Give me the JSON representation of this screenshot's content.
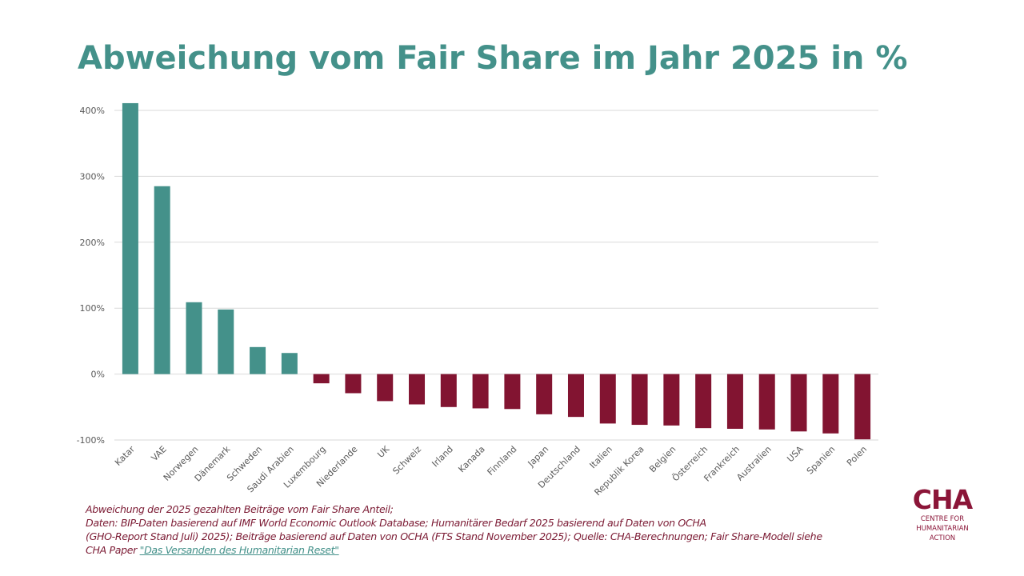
{
  "title": "Abweichung vom Fair Share im Jahr 2025 in %",
  "colors": {
    "positive": "#44918a",
    "negative": "#821431",
    "grid": "#d9d9d9",
    "title": "#44918a",
    "footnote": "#7b1a33",
    "link": "#44918a",
    "logo": "#8b1538"
  },
  "chart_data": {
    "type": "bar",
    "title": "Abweichung vom Fair Share im Jahr 2025 in %",
    "xlabel": "",
    "ylabel": "",
    "ylim": [
      -100,
      400
    ],
    "yticks": [
      400,
      300,
      200,
      100,
      0,
      -100
    ],
    "ytick_labels": [
      "400%",
      "300%",
      "200%",
      "100%",
      "0%",
      "-100%"
    ],
    "grid": true,
    "legend": "none",
    "categories": [
      "Katar",
      "VAE",
      "Norwegen",
      "Dänemark",
      "Schweden",
      "Saudi Arabien",
      "Luxembourg",
      "Niederlande",
      "UK",
      "Schweiz",
      "Irland",
      "Kanada",
      "Finnland",
      "Japan",
      "Deutschland",
      "Italien",
      "Republik Korea",
      "Belgien",
      "Österreich",
      "Frankreich",
      "Australien",
      "USA",
      "Spanien",
      "Polen"
    ],
    "values": [
      411,
      285,
      109,
      98,
      41,
      32,
      -14,
      -29,
      -41,
      -46,
      -50,
      -52,
      -53,
      -61,
      -65,
      -75,
      -77,
      -78,
      -82,
      -83,
      -84,
      -87,
      -90,
      -99
    ],
    "unit": "%"
  },
  "footnote": {
    "line1": "Abweichung der 2025 gezahlten Beiträge vom Fair Share Anteil;",
    "line2": "Daten: BIP-Daten basierend auf IMF World Economic Outlook Database; Humanitärer Bedarf 2025 basierend auf Daten von OCHA",
    "line3": "(GHO-Report Stand Juli) 2025); Beiträge basierend auf Daten von OCHA (FTS Stand November 2025); Quelle: CHA-Berechnungen; Fair Share-Modell siehe",
    "line4_prefix": "CHA Paper ",
    "link_text": "\"Das Versanden des Humanitarian Reset\""
  },
  "logo": {
    "mark": "CHA",
    "line1": "CENTRE FOR",
    "line2": "HUMANITARIAN",
    "line3": "ACTION"
  }
}
